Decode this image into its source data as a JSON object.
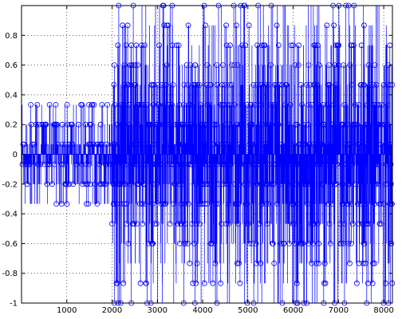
{
  "chart_data": {
    "type": "stem",
    "title": "",
    "xlabel": "",
    "ylabel": "",
    "xlim": [
      0,
      8192
    ],
    "ylim": [
      -1,
      1
    ],
    "xticks": [
      1000,
      2000,
      3000,
      4000,
      5000,
      6000,
      7000,
      8000
    ],
    "xtick_labels": [
      "1000",
      "2000",
      "3000",
      "4000",
      "5000",
      "6000",
      "7000",
      "8000"
    ],
    "yticks": [
      -1,
      -0.8,
      -0.6,
      -0.4,
      -0.2,
      0,
      0.2,
      0.4,
      0.6,
      0.8
    ],
    "ytick_labels": [
      "-1",
      "-0.8",
      "-0.6",
      "-0.4",
      "-0.2",
      "0",
      "0.2",
      "0.4",
      "0.6",
      "0.8"
    ],
    "grid": true,
    "legend": "none",
    "color": "#0000ff",
    "marker": "circle",
    "series": [
      {
        "segments": [
          {
            "x_start": 0,
            "x_end": 2000,
            "levels": [
              -0.333,
              -0.2,
              -0.067,
              0.067,
              0.2,
              0.333
            ],
            "envelope": 0.2,
            "density": 0.55
          },
          {
            "x_start": 2000,
            "x_end": 8192,
            "levels": [
              -1,
              -0.867,
              -0.733,
              -0.6,
              -0.467,
              -0.333,
              -0.2,
              -0.067,
              0.067,
              0.2,
              0.333,
              0.467,
              0.6,
              0.733,
              0.867,
              1
            ],
            "envelope": 0.467,
            "density": 1
          }
        ],
        "sample_count": 8192
      }
    ]
  }
}
